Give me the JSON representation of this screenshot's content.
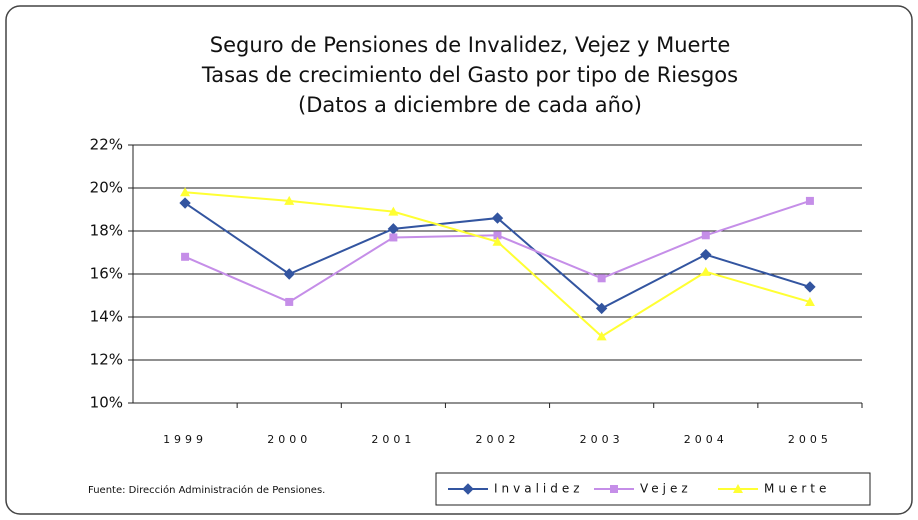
{
  "chart_data": {
    "type": "line",
    "title": [
      "Seguro de Pensiones de Invalidez, Vejez y Muerte",
      "Tasas de crecimiento del Gasto por tipo de Riesgos",
      "(Datos a diciembre de cada año)"
    ],
    "source": "Fuente: Dirección Administración de Pensiones.",
    "categories": [
      "1999",
      "2000",
      "2001",
      "2002",
      "2003",
      "2004",
      "2005"
    ],
    "series": [
      {
        "name": "Invalidez",
        "color": "#3355a0",
        "marker": "diamond",
        "values": [
          19.3,
          16.0,
          18.1,
          18.6,
          14.4,
          16.9,
          15.4
        ]
      },
      {
        "name": "Vejez",
        "color": "#c58ee8",
        "marker": "square",
        "values": [
          16.8,
          14.7,
          17.7,
          17.8,
          15.8,
          17.8,
          19.4
        ]
      },
      {
        "name": "Muerte",
        "color": "#ffff33",
        "marker": "triangle",
        "values": [
          19.8,
          19.4,
          18.9,
          17.5,
          13.1,
          16.1,
          14.7
        ]
      }
    ],
    "ylim": [
      10,
      22
    ],
    "yticks": [
      {
        "value": 10,
        "label": "10%"
      },
      {
        "value": 12,
        "label": "12%"
      },
      {
        "value": 14,
        "label": "14%"
      },
      {
        "value": 16,
        "label": "16%"
      },
      {
        "value": 18,
        "label": "18%"
      },
      {
        "value": 20,
        "label": "20%"
      },
      {
        "value": 22,
        "label": "22%"
      }
    ],
    "grid": true
  }
}
